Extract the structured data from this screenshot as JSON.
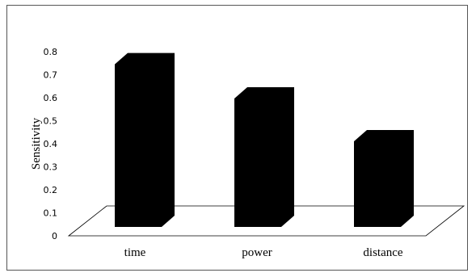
{
  "chart_data": {
    "type": "bar",
    "style": "3d",
    "categories": [
      "time",
      "power",
      "distance"
    ],
    "values": [
      0.76,
      0.6,
      0.4
    ],
    "title": "",
    "xlabel": "",
    "ylabel": "Sensitivity",
    "ylim": [
      0,
      0.8
    ],
    "yticks": [
      "0",
      "0.1",
      "0.2",
      "0.3",
      "0.4",
      "0.5",
      "0.6",
      "0.7",
      "0.8"
    ],
    "grid": false,
    "legend": "none",
    "bar_color": "#000000"
  }
}
